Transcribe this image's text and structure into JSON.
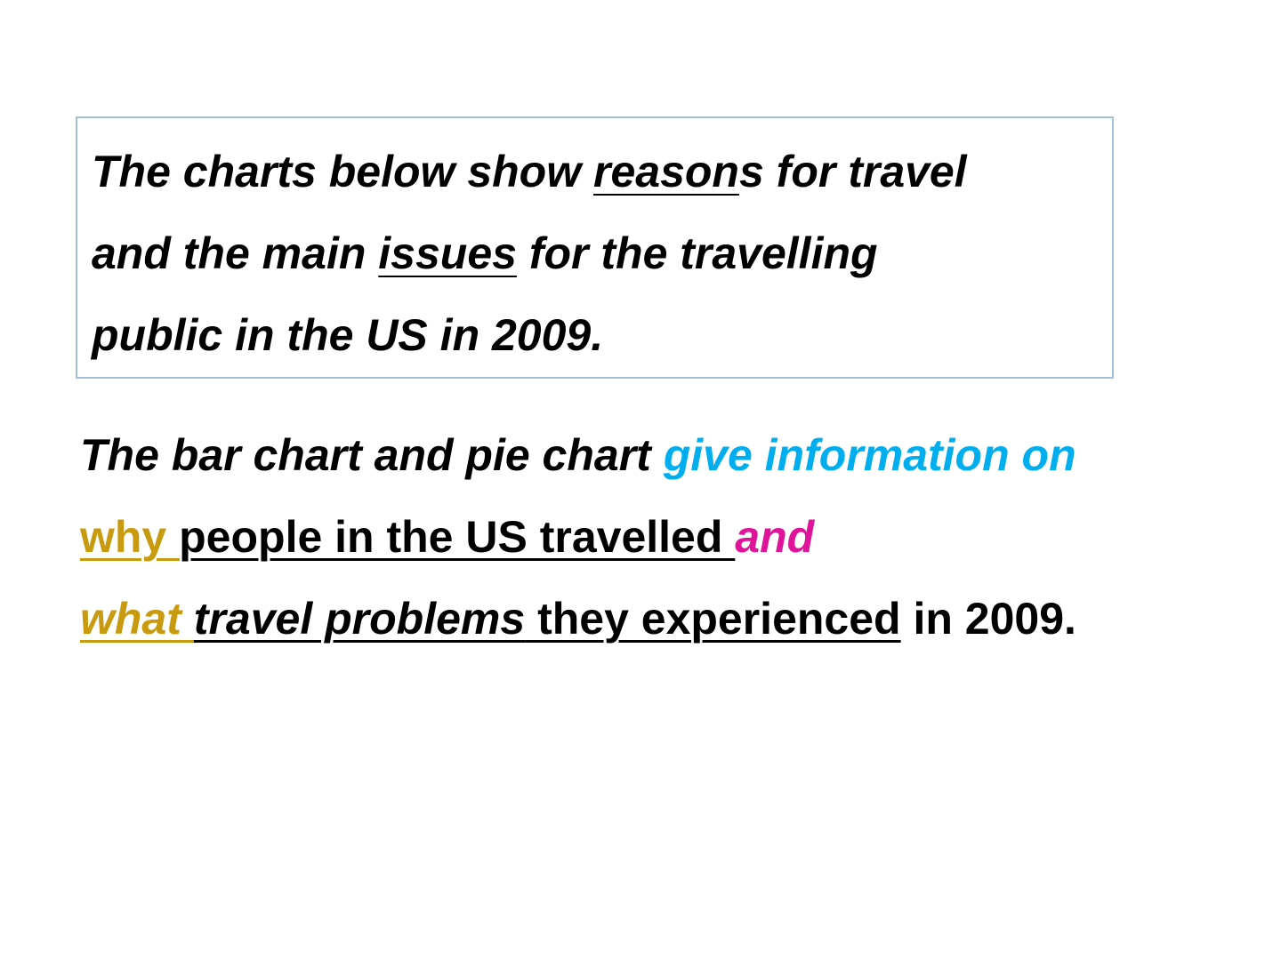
{
  "prompt": {
    "seg1": "The charts below show ",
    "seg2": "reason",
    "seg3": "s for travel",
    "seg4": "and the main ",
    "seg5": "issues",
    "seg6": " for the travelling",
    "seg7": "public in the US in 2009."
  },
  "paraphrase": {
    "l1_a": "The bar chart and pie chart ",
    "l1_b": "give information on",
    "l2_a": "why ",
    "l2_b": "people in the US travelled ",
    "l2_c": "and",
    "l3_a": "what ",
    "l3_b": "travel problems",
    "l3_c": " they experienced",
    "l3_d": " in 2009."
  },
  "colors": {
    "box_border": "#a3bfd9",
    "blue": "#00aeef",
    "gold": "#c79a10",
    "magenta": "#e0149a"
  }
}
